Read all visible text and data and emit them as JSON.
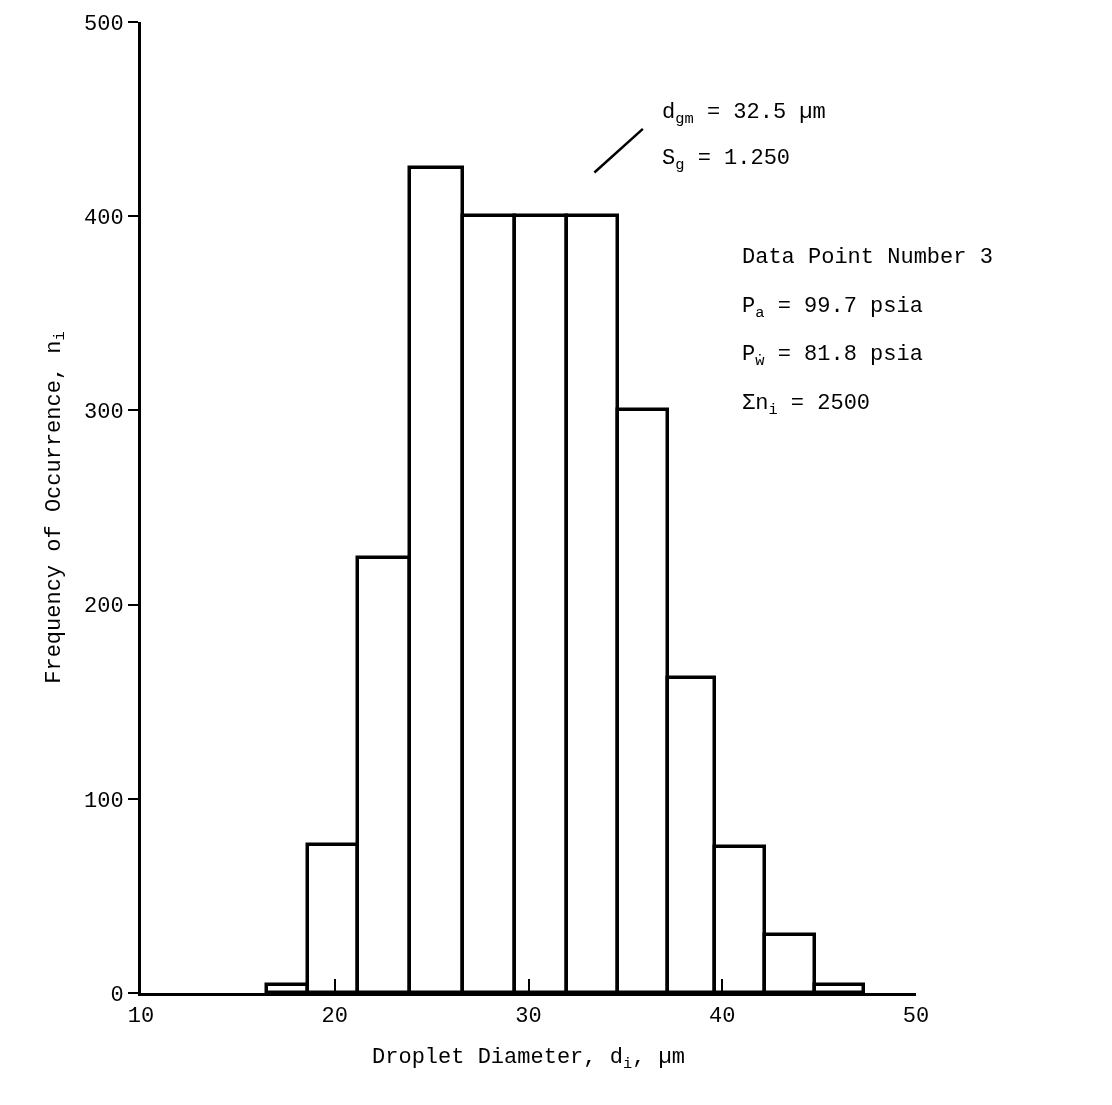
{
  "chart_data": {
    "type": "histogram",
    "xlabel": "Droplet Diameter, d$_{i}$, µm",
    "ylabel": "Frequency of Occurrence, n$_{i}$",
    "bins": [
      16.5,
      18.6,
      21.2,
      23.9,
      26.6,
      29.3,
      32.0,
      34.6,
      37.2,
      39.6,
      42.2,
      44.8,
      47.3
    ],
    "values": [
      4,
      76,
      224,
      425,
      400,
      400,
      400,
      300,
      162,
      75,
      30,
      4
    ],
    "color": "#000000",
    "xlim": [
      10,
      50
    ],
    "xticks": [
      10,
      20,
      30,
      40,
      50
    ],
    "ylim": [
      0,
      500
    ],
    "yticks": [
      0,
      100,
      200,
      300,
      400,
      500
    ],
    "annotations": [
      "d$_{gm}$ = 32.5 µm",
      "S$_{g}$ = 1.250",
      "Data Point Number 3",
      "P$_{a}$ = 99.7 psia",
      "P$_{ẇ}$ = 81.8 psia",
      "Σn$_{i}$ = 2500"
    ]
  }
}
